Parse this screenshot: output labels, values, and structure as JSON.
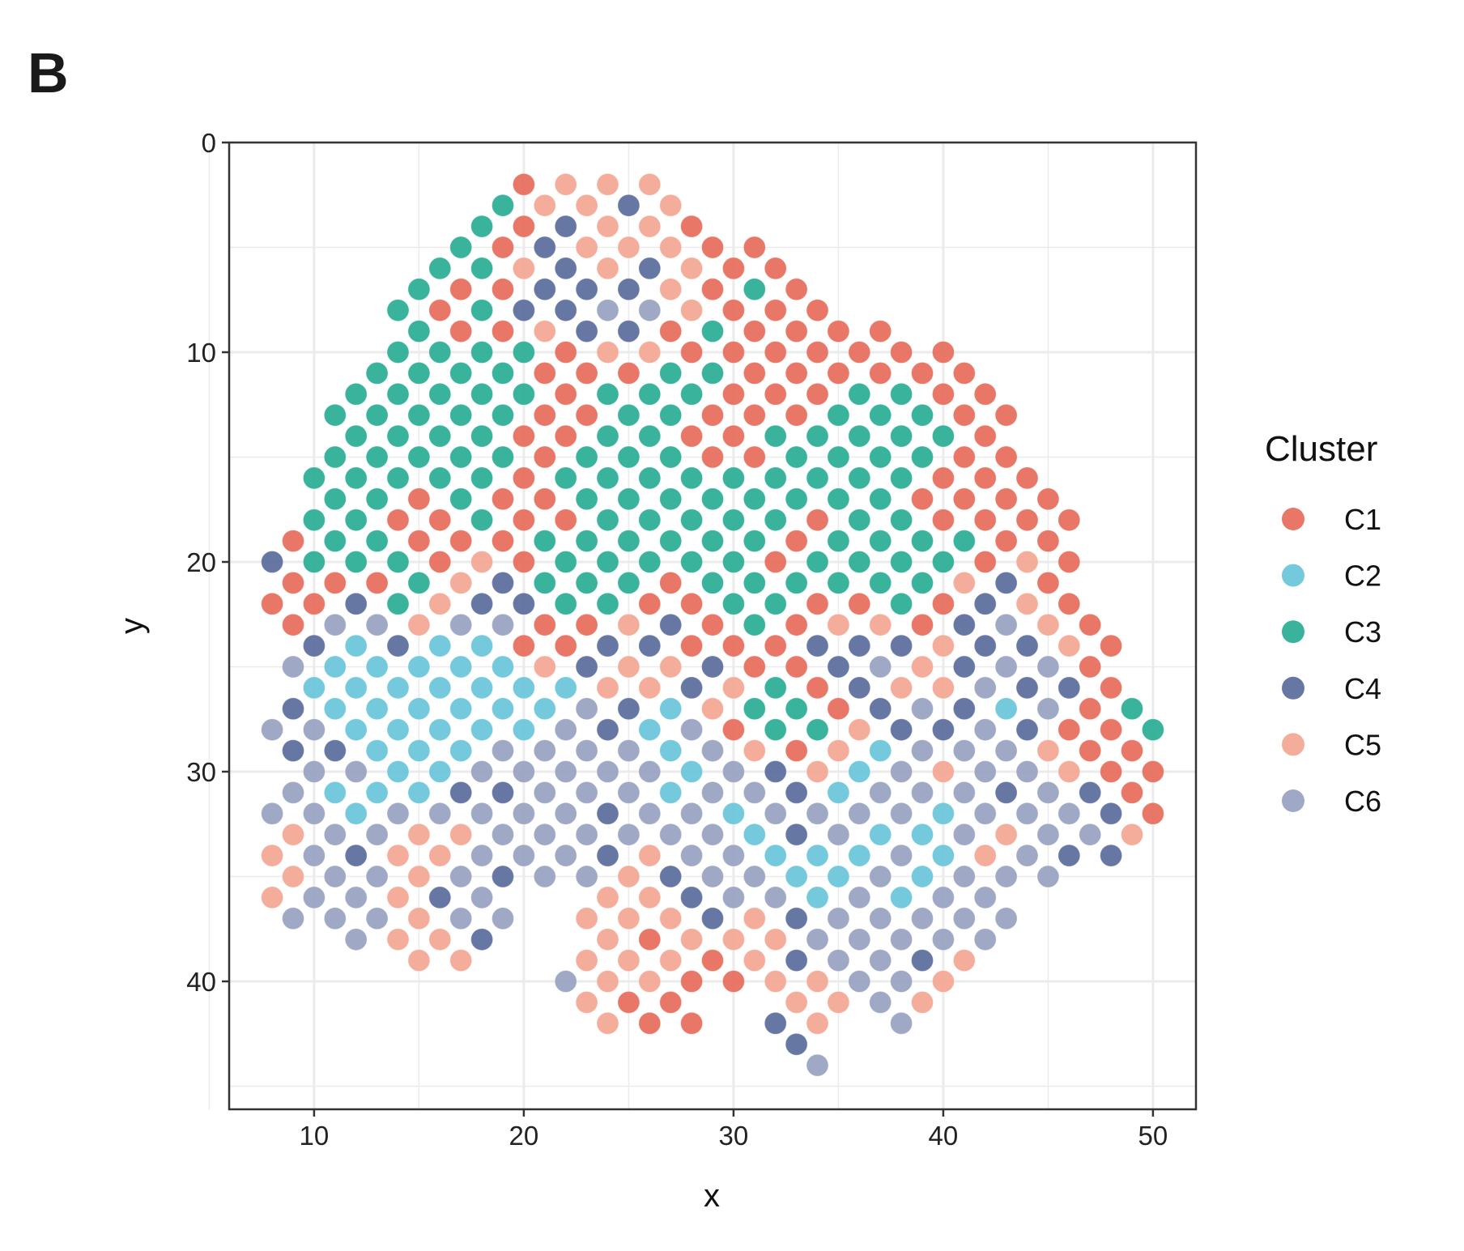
{
  "panel_label": "B",
  "chart_data": {
    "type": "scatter",
    "xlabel": "x",
    "ylabel": "y",
    "xlim": [
      5.95,
      52.05
    ],
    "ylim": [
      0,
      46.1
    ],
    "y_reversed": true,
    "grid": true,
    "xticks": [
      10,
      20,
      30,
      40,
      50
    ],
    "yticks": [
      0,
      10,
      20,
      30,
      40
    ],
    "legend": {
      "title": "Cluster",
      "placement": "right",
      "entries": [
        {
          "code": "1",
          "label": "C1",
          "color": "#E8705F"
        },
        {
          "code": "2",
          "label": "C2",
          "color": "#6EC6DA"
        },
        {
          "code": "3",
          "label": "C3",
          "color": "#2FAF97"
        },
        {
          "code": "4",
          "label": "C4",
          "color": "#5F709F"
        },
        {
          "code": "5",
          "label": "C5",
          "color": "#F4A996"
        },
        {
          "code": "6",
          "label": "C6",
          "color": "#9AA4C2"
        }
      ]
    },
    "points_encoding": "each row: y value, first x value, cluster codes for x = x0, x0+2, x0+4, ... ('0' = no point)",
    "rows": [
      {
        "y": 2,
        "x0": 20,
        "c": "1555"
      },
      {
        "y": 3,
        "x0": 19,
        "c": "35545"
      },
      {
        "y": 4,
        "x0": 18,
        "c": "314551"
      },
      {
        "y": 5,
        "x0": 17,
        "c": "31455511"
      },
      {
        "y": 6,
        "x0": 16,
        "c": "335454511"
      },
      {
        "y": 7,
        "x0": 15,
        "c": "3114445131"
      },
      {
        "y": 8,
        "x0": 14,
        "c": "31344665111"
      },
      {
        "y": 9,
        "x0": 15,
        "c": "311544131111"
      },
      {
        "y": 10,
        "x0": 14,
        "c": "33331551111111"
      },
      {
        "y": 11,
        "x0": 13,
        "c": "333311133111111"
      },
      {
        "y": 12,
        "x0": 12,
        "c": "3333313331113311"
      },
      {
        "y": 13,
        "x0": 11,
        "c": "33333113311133311"
      },
      {
        "y": 14,
        "x0": 12,
        "c": "3333113311333331"
      },
      {
        "y": 15,
        "x0": 11,
        "c": "33333133311333311"
      },
      {
        "y": 16,
        "x0": 10,
        "c": "333331333333333111"
      },
      {
        "y": 17,
        "x0": 11,
        "c": "331311333333331111"
      },
      {
        "y": 18,
        "x0": 10,
        "c": "3311311333331331111"
      },
      {
        "y": 19,
        "x0": 9,
        "c": "1331113333331333311"
      },
      {
        "y": 20,
        "x0": 8,
        "c": "43331513333313333151"
      },
      {
        "y": 21,
        "x0": 9,
        "c": "1113543331333333541"
      },
      {
        "y": 22,
        "x0": 8,
        "c": "11435443311331131451"
      },
      {
        "y": 23,
        "x0": 9,
        "c": "16656611541315514651"
      },
      {
        "y": 24,
        "x0": 10,
        "c": "42422114411144454451"
      },
      {
        "y": 25,
        "x0": 9,
        "c": "62222254554114654661"
      },
      {
        "y": 26,
        "x0": 10,
        "c": "22222225545314556441"
      },
      {
        "y": 27,
        "x0": 9,
        "c": "422222264253314642613"
      },
      {
        "y": 28,
        "x0": 8,
        "c": "6622222642613354464113"
      },
      {
        "y": 29,
        "x0": 9,
        "c": "442226666265152666511"
      },
      {
        "y": 30,
        "x0": 10,
        "c": "662266666264526566511"
      },
      {
        "y": 31,
        "x0": 9,
        "c": "622244666266426664641"
      },
      {
        "y": 32,
        "x0": 8,
        "c": "6626666646626666266641"
      },
      {
        "y": 33,
        "x0": 9,
        "c": "566556666662462265665"
      },
      {
        "y": 34,
        "x0": 8,
        "c": "564556664566222625644"
      },
      {
        "y": 35,
        "x0": 9,
        "c": "5665646654662262666"
      },
      {
        "y": 36,
        "x0": 8,
        "c": "566546005546626266"
      },
      {
        "y": 37,
        "x0": 9,
        "c": "666566055545466666"
      },
      {
        "y": 38,
        "x0": 12,
        "c": "6554005155566666"
      },
      {
        "y": 39,
        "x0": 15,
        "c": "55005551546645"
      },
      {
        "y": 40,
        "x0": 22,
        "c": "6551155665"
      },
      {
        "y": 41,
        "x0": 23,
        "c": "511005565"
      },
      {
        "y": 42,
        "x0": 24,
        "c": "51104506"
      },
      {
        "y": 43,
        "x0": 33,
        "c": "4"
      },
      {
        "y": 44,
        "x0": 34,
        "c": "6"
      }
    ]
  }
}
